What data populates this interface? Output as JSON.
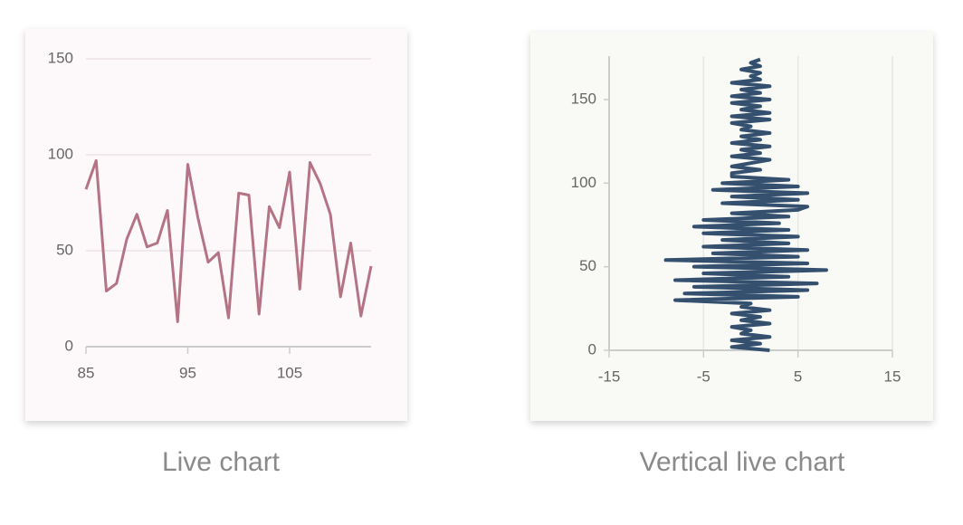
{
  "chart_data": [
    {
      "type": "line",
      "caption": "Live chart",
      "color": "#b47485",
      "x": [
        85,
        86,
        87,
        88,
        89,
        90,
        91,
        92,
        93,
        94,
        95,
        96,
        97,
        98,
        99,
        100,
        101,
        102,
        103,
        104,
        105,
        106,
        107,
        108,
        109,
        110,
        111,
        112,
        113
      ],
      "values": [
        82,
        97,
        29,
        33,
        56,
        69,
        52,
        54,
        71,
        13,
        95,
        67,
        44,
        49,
        15,
        80,
        79,
        17,
        73,
        62,
        91,
        30,
        96,
        85,
        69,
        26,
        54,
        16,
        42
      ],
      "xlim": [
        85,
        113
      ],
      "xticks": [
        85,
        95,
        105
      ],
      "ylim": [
        0,
        150
      ],
      "yticks": [
        0,
        50,
        100,
        150
      ],
      "grid": true
    },
    {
      "type": "line",
      "orientation": "vertical",
      "caption": "Vertical live chart",
      "color": "#34506e",
      "y": [
        0,
        2,
        4,
        6,
        8,
        10,
        12,
        14,
        16,
        18,
        20,
        22,
        24,
        26,
        28,
        30,
        32,
        34,
        36,
        38,
        40,
        42,
        44,
        46,
        48,
        50,
        52,
        54,
        56,
        58,
        60,
        62,
        64,
        66,
        68,
        70,
        72,
        74,
        76,
        78,
        80,
        82,
        84,
        86,
        88,
        90,
        92,
        94,
        96,
        98,
        100,
        102,
        104,
        106,
        108,
        110,
        112,
        114,
        116,
        118,
        120,
        122,
        124,
        126,
        128,
        130,
        132,
        134,
        136,
        138,
        140,
        142,
        144,
        146,
        148,
        150,
        152,
        154,
        156,
        158,
        160,
        162,
        164,
        166,
        168,
        170,
        172,
        174
      ],
      "values": [
        2,
        -2,
        1,
        -2,
        2,
        -1,
        0,
        -2,
        2,
        -1,
        1,
        -2,
        2,
        -1,
        0,
        -8,
        5,
        -7,
        6,
        -6,
        7,
        -8,
        4,
        -5,
        8,
        -6,
        6,
        -9,
        5,
        -4,
        6,
        -5,
        4,
        -3,
        5,
        -5,
        4,
        -6,
        3,
        -5,
        4,
        -2,
        5,
        6,
        -3,
        5,
        -2,
        6,
        -4,
        5,
        -3,
        4,
        -2,
        -2,
        1,
        -2,
        0,
        2,
        -2,
        1,
        -1,
        2,
        -2,
        1,
        -1,
        2,
        -1,
        0,
        -2,
        2,
        -2,
        2,
        -1,
        1,
        -2,
        2,
        -2,
        1,
        -1,
        2,
        -2,
        1,
        0,
        1,
        -1,
        1,
        0,
        1
      ],
      "xlim": [
        -15,
        15
      ],
      "xticks": [
        -15,
        -5,
        5,
        15
      ],
      "ylim": [
        0,
        176
      ],
      "yticks": [
        0,
        50,
        100,
        150
      ],
      "grid": true
    }
  ]
}
